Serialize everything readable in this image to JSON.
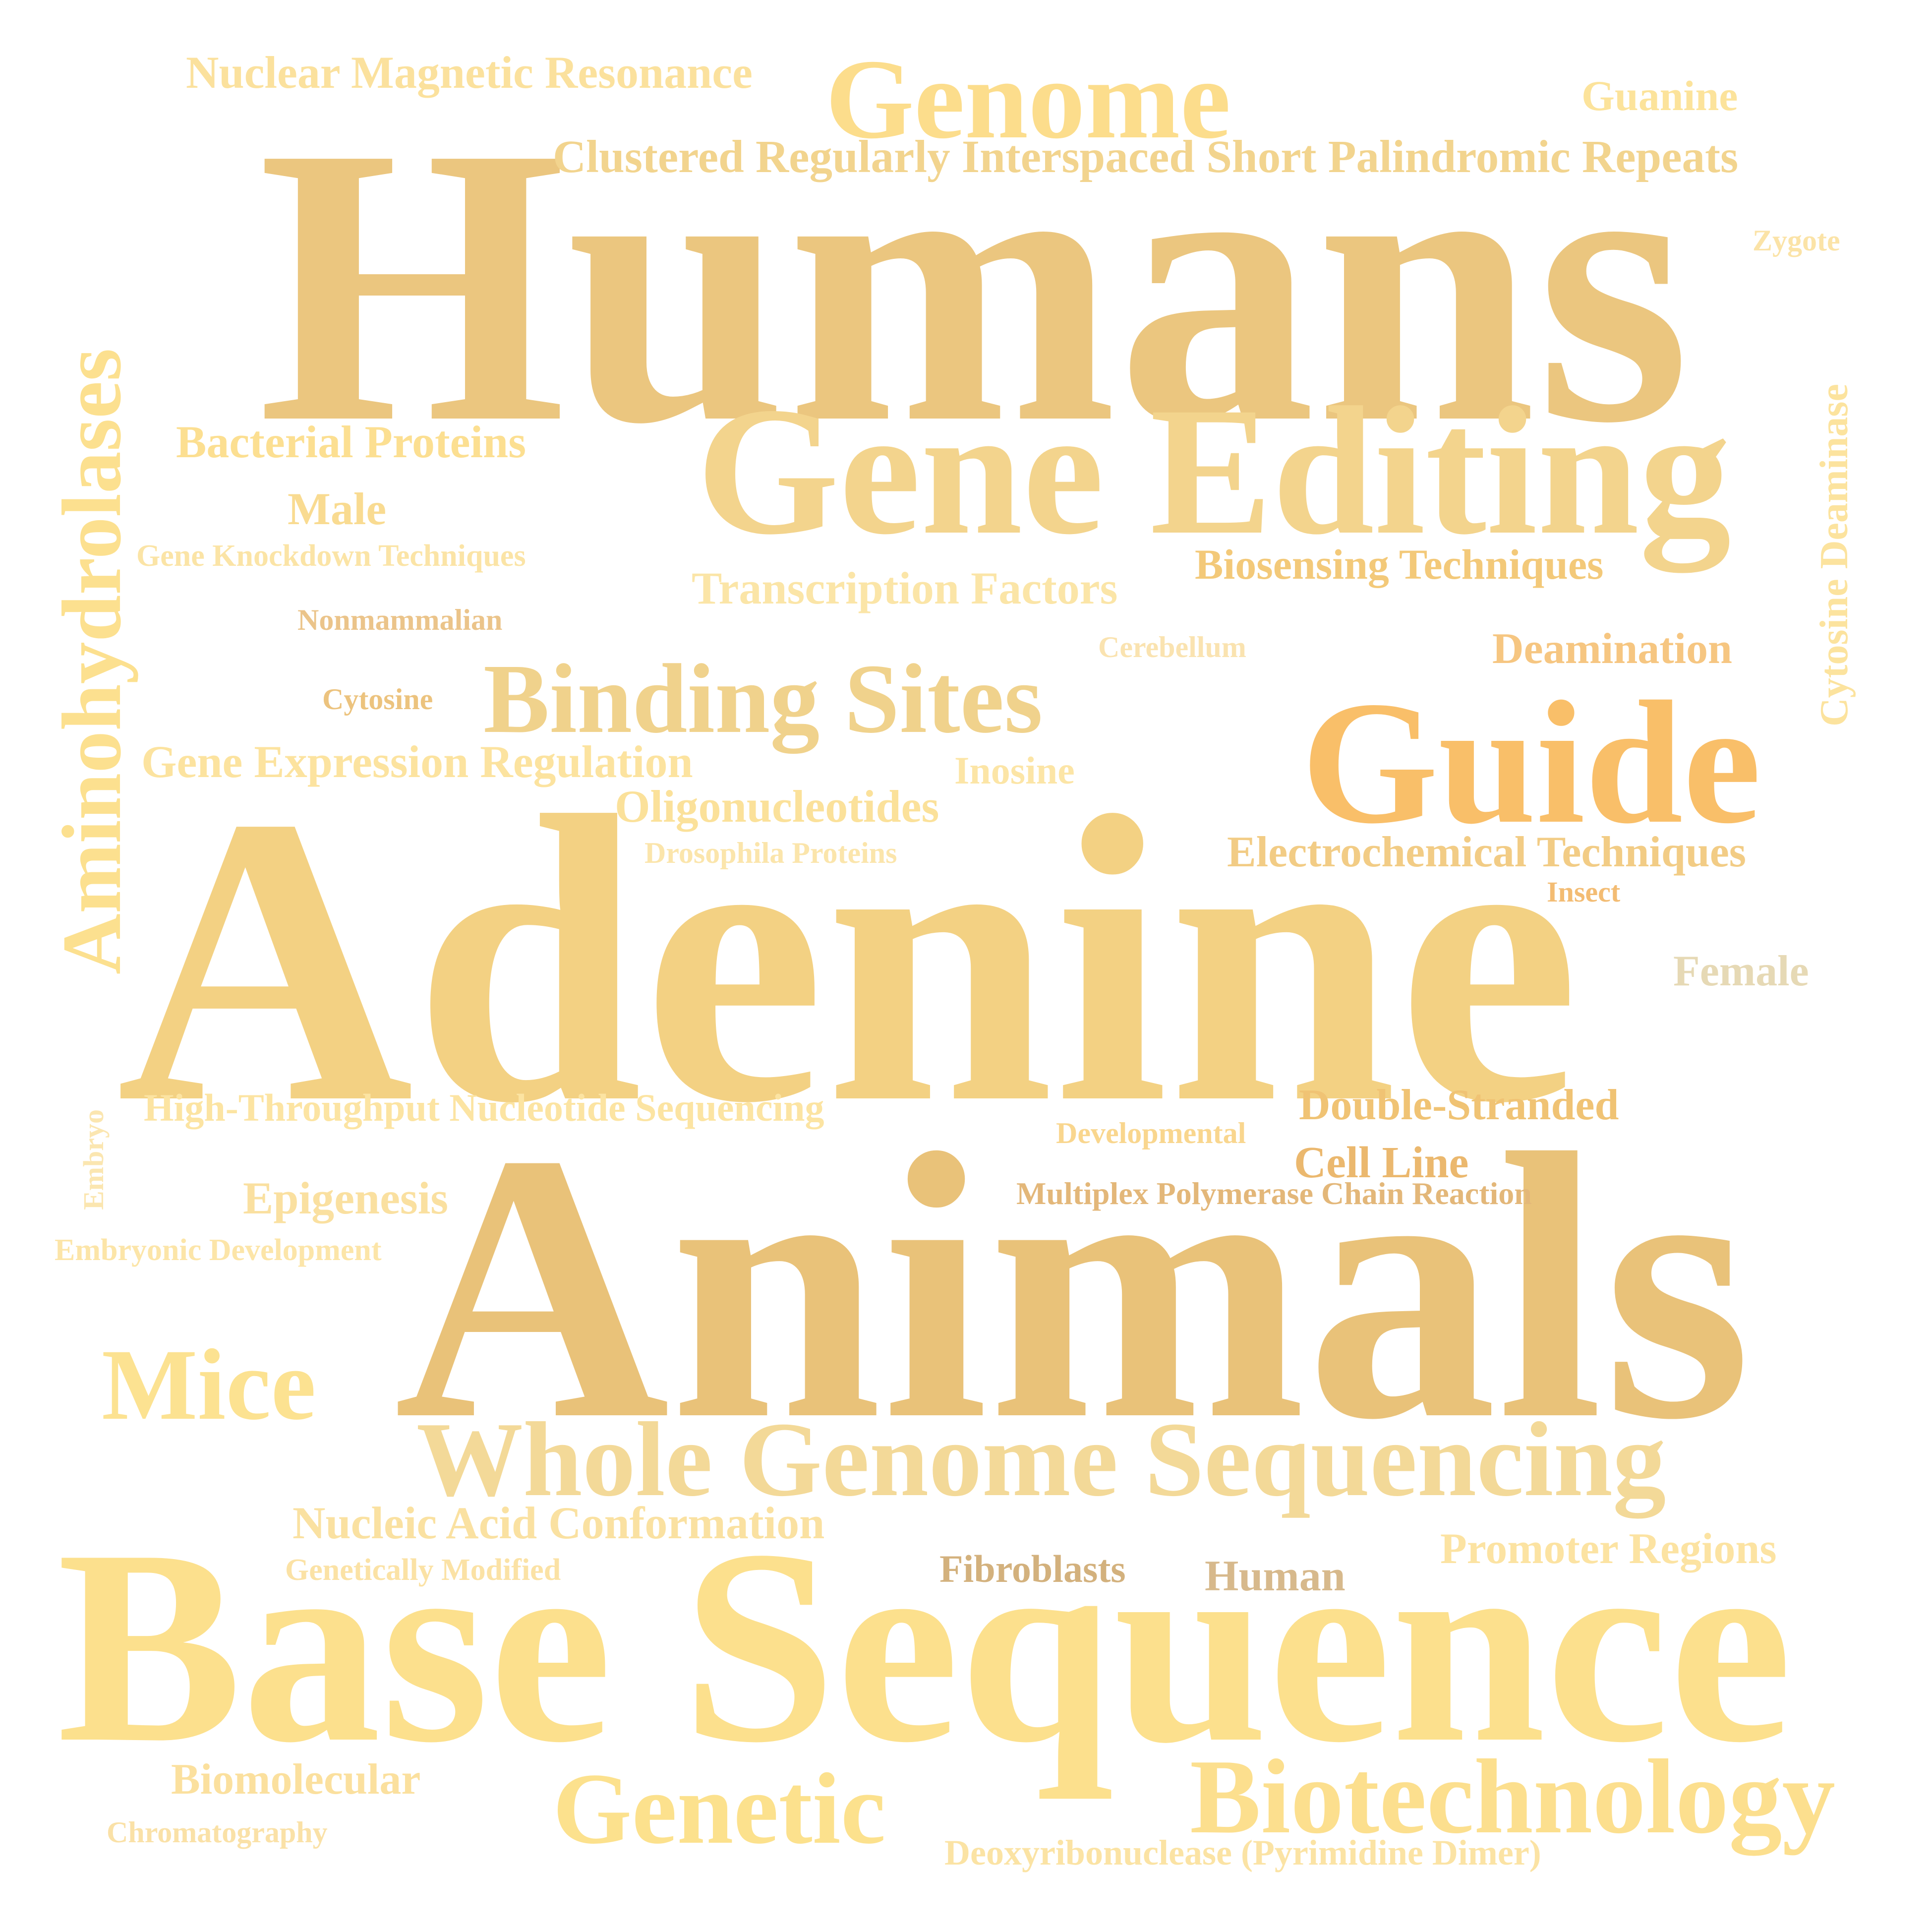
{
  "words": [
    {
      "text": "Humans",
      "color": "#EBC67F"
    },
    {
      "text": "Adenine",
      "color": "#F3D183"
    },
    {
      "text": "Animals",
      "color": "#E9C279"
    },
    {
      "text": "Base Sequence",
      "color": "#FCE08D"
    },
    {
      "text": "Gene Editing",
      "color": "#F3D48D"
    },
    {
      "text": "Guide",
      "color": "#F9BF69"
    },
    {
      "text": "Genome",
      "color": "#FCDD8C"
    },
    {
      "text": "Whole Genome Sequencing",
      "color": "#F3D998"
    },
    {
      "text": "Biotechnology",
      "color": "#FCDF8E"
    },
    {
      "text": "Genetic",
      "color": "#FCE18D"
    },
    {
      "text": "Aminohydrolases",
      "color": "#FCE08F"
    },
    {
      "text": "Binding Sites",
      "color": "#F0D28C"
    },
    {
      "text": "Mice",
      "color": "#FCE291"
    },
    {
      "text": "Clustered Regularly Interspaced Short Palindromic Repeats",
      "color": "#F2D48E"
    },
    {
      "text": "Nuclear Magnetic Resonance",
      "color": "#FBE19D"
    },
    {
      "text": "Bacterial Proteins",
      "color": "#FCDF91"
    },
    {
      "text": "Male",
      "color": "#F9DB91"
    },
    {
      "text": "Gene Knockdown Techniques",
      "color": "#FBE4A6"
    },
    {
      "text": "Transcription Factors",
      "color": "#FBE5A7"
    },
    {
      "text": "Biosensing Techniques",
      "color": "#F3C979"
    },
    {
      "text": "Nonmammalian",
      "color": "#EBC48A"
    },
    {
      "text": "Cerebellum",
      "color": "#FAE3B0"
    },
    {
      "text": "Deamination",
      "color": "#F6C681"
    },
    {
      "text": "Cytosine Deaminase",
      "color": "#FCE39E"
    },
    {
      "text": "Zygote",
      "color": "#FBE3A7"
    },
    {
      "text": "Guanine",
      "color": "#FCE39B"
    },
    {
      "text": "Cytosine",
      "color": "#ECC37E"
    },
    {
      "text": "Gene Expression Regulation",
      "color": "#FCE39F"
    },
    {
      "text": "Inosine",
      "color": "#FCE5A6"
    },
    {
      "text": "Oligonucleotides",
      "color": "#FBE19A"
    },
    {
      "text": "Drosophila Proteins",
      "color": "#FBE5AB"
    },
    {
      "text": "Electrochemical Techniques",
      "color": "#F2CC85"
    },
    {
      "text": "Insect",
      "color": "#F3BC73"
    },
    {
      "text": "Female",
      "color": "#E6D9B5"
    },
    {
      "text": "High-Throughput Nucleotide Sequencing",
      "color": "#FCE4A2"
    },
    {
      "text": "Embryo",
      "color": "#FBE6B0"
    },
    {
      "text": "Developmental",
      "color": "#F9D68E"
    },
    {
      "text": "Double-Stranded",
      "color": "#F0C374"
    },
    {
      "text": "Cell Line",
      "color": "#EBB86E"
    },
    {
      "text": "Multiplex Polymerase Chain Reaction",
      "color": "#E3B779"
    },
    {
      "text": "Epigenesis",
      "color": "#FAE0A0"
    },
    {
      "text": "Embryonic Development",
      "color": "#FCE5A8"
    },
    {
      "text": "Nucleic Acid Conformation",
      "color": "#FAE1A1"
    },
    {
      "text": "Genetically Modified",
      "color": "#FBE2A5"
    },
    {
      "text": "Fibroblasts",
      "color": "#D3B17D"
    },
    {
      "text": "Human",
      "color": "#D7B98C"
    },
    {
      "text": "Promoter Regions",
      "color": "#FCE3A2"
    },
    {
      "text": "Biomolecular",
      "color": "#FBE09E"
    },
    {
      "text": "Chromatography",
      "color": "#FAE1A7"
    },
    {
      "text": "Deoxyribonuclease (Pyrimidine Dimer)",
      "color": "#FBE3A4"
    }
  ]
}
